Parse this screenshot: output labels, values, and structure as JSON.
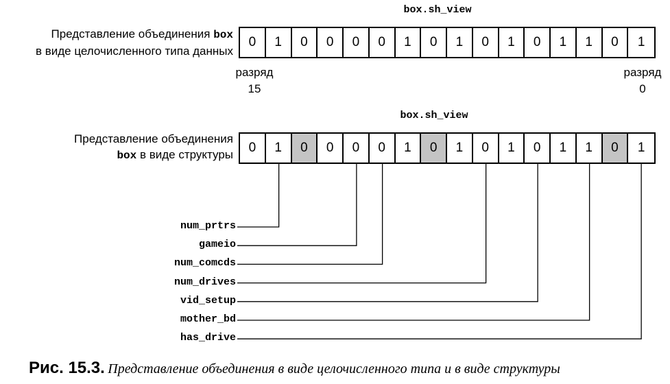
{
  "top": {
    "title": "box.sh_view",
    "desc_line1_text": "Представление объединения ",
    "desc_line1_code": "box",
    "desc_line2": "в виде целочисленного типа данных",
    "bits": [
      "0",
      "1",
      "0",
      "0",
      "0",
      "0",
      "1",
      "0",
      "1",
      "0",
      "1",
      "0",
      "1",
      "1",
      "0",
      "1"
    ],
    "left_label": "разряд",
    "left_num": "15",
    "right_label": "разряд",
    "right_num": "0"
  },
  "bottom": {
    "title": "box.sh_view",
    "desc_line1": "Представление объединения",
    "desc_line2_code": "box",
    "desc_line2_text": " в виде структуры",
    "bits": [
      "0",
      "1",
      "0",
      "0",
      "0",
      "0",
      "1",
      "0",
      "1",
      "0",
      "1",
      "0",
      "1",
      "1",
      "0",
      "1"
    ],
    "shaded_bits": [
      2,
      7,
      14
    ],
    "fields": [
      {
        "name": "num_prtrs",
        "bit_index": 1
      },
      {
        "name": "gameio",
        "bit_index": 4
      },
      {
        "name": "num_comcds",
        "bit_index": 5
      },
      {
        "name": "num_drives",
        "bit_index": 9
      },
      {
        "name": "vid_setup",
        "bit_index": 11
      },
      {
        "name": "mother_bd",
        "bit_index": 13
      },
      {
        "name": "has_drive",
        "bit_index": 15
      }
    ]
  },
  "caption": {
    "label": "Рис. 15.3.",
    "text": "Представление объединения в виде целочисленного типа и в виде структуры"
  }
}
